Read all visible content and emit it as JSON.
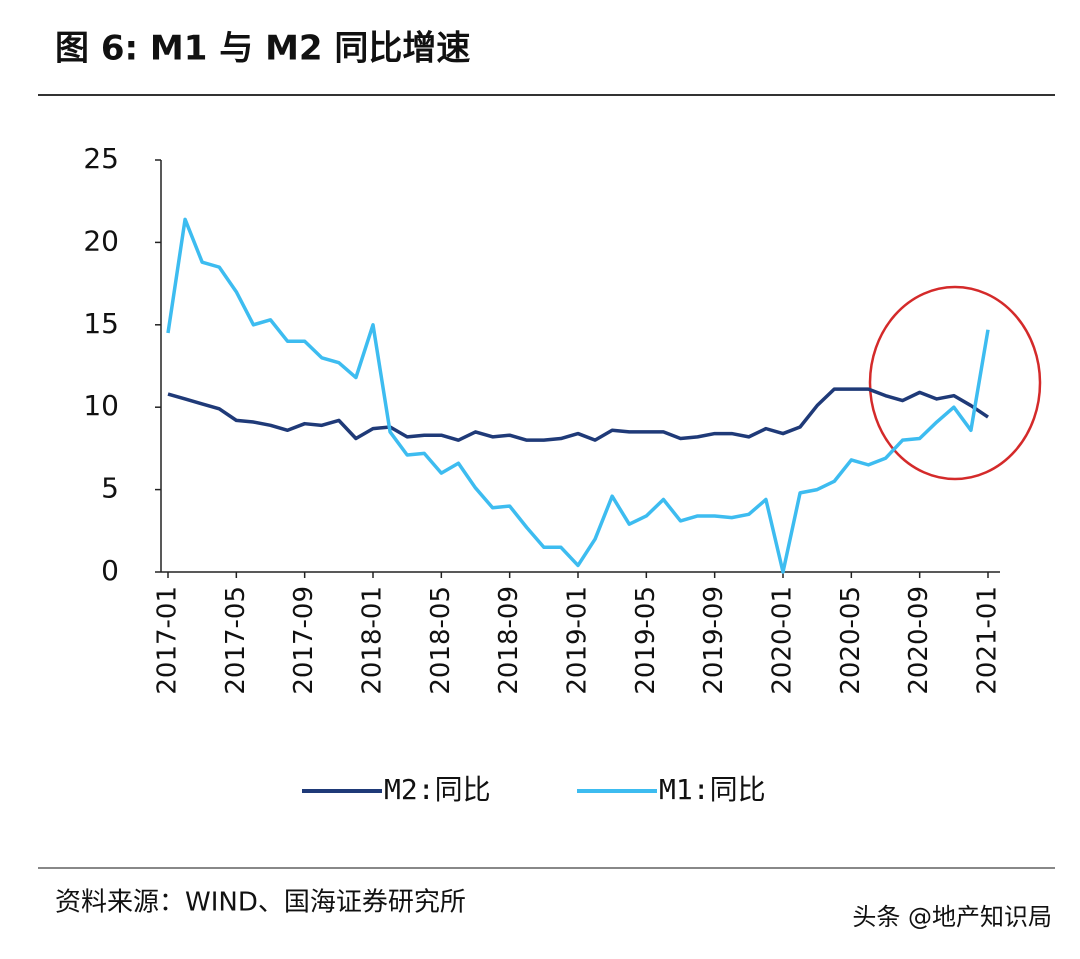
{
  "chart_data": {
    "type": "line",
    "title": "图 6: M1 与 M2 同比增速",
    "source": "资料来源：WIND、国海证券研究所",
    "watermark": "头条 @地产知识局",
    "categories": [
      "2017-01",
      null,
      null,
      null,
      "2017-05",
      null,
      null,
      null,
      "2017-09",
      null,
      null,
      null,
      "2018-01",
      null,
      null,
      null,
      "2018-05",
      null,
      null,
      null,
      "2018-09",
      null,
      null,
      null,
      "2019-01",
      null,
      null,
      null,
      "2019-05",
      null,
      null,
      null,
      "2019-09",
      null,
      null,
      null,
      "2020-01",
      null,
      null,
      null,
      "2020-05",
      null,
      null,
      null,
      "2020-09",
      null,
      null,
      null,
      "2021-01"
    ],
    "series": [
      {
        "name": "M2:同比",
        "color": "#1f3a78",
        "values": [
          10.8,
          10.5,
          10.2,
          9.9,
          9.2,
          9.1,
          8.9,
          8.6,
          9.0,
          8.9,
          9.2,
          8.1,
          8.7,
          8.8,
          8.2,
          8.3,
          8.3,
          8.0,
          8.5,
          8.2,
          8.3,
          8.0,
          8.0,
          8.1,
          8.4,
          8.0,
          8.6,
          8.5,
          8.5,
          8.5,
          8.1,
          8.2,
          8.4,
          8.4,
          8.2,
          8.7,
          8.4,
          8.8,
          10.1,
          11.1,
          11.1,
          11.1,
          10.7,
          10.4,
          10.9,
          10.5,
          10.7,
          10.1,
          9.4
        ]
      },
      {
        "name": "M1:同比",
        "color": "#3dbcf0",
        "values": [
          14.5,
          21.4,
          18.8,
          18.5,
          17.0,
          15.0,
          15.3,
          14.0,
          14.0,
          13.0,
          12.7,
          11.8,
          15.0,
          8.5,
          7.1,
          7.2,
          6.0,
          6.6,
          5.1,
          3.9,
          4.0,
          2.7,
          1.5,
          1.5,
          0.4,
          2.0,
          4.6,
          2.9,
          3.4,
          4.4,
          3.1,
          3.4,
          3.4,
          3.3,
          3.5,
          4.4,
          0.0,
          4.8,
          5.0,
          5.5,
          6.8,
          6.5,
          6.9,
          8.0,
          8.1,
          9.1,
          10.0,
          8.6,
          14.7
        ]
      }
    ],
    "ylim": [
      0,
      25
    ],
    "yticks": [
      0,
      5,
      10,
      15,
      20,
      25
    ],
    "grid": false
  }
}
